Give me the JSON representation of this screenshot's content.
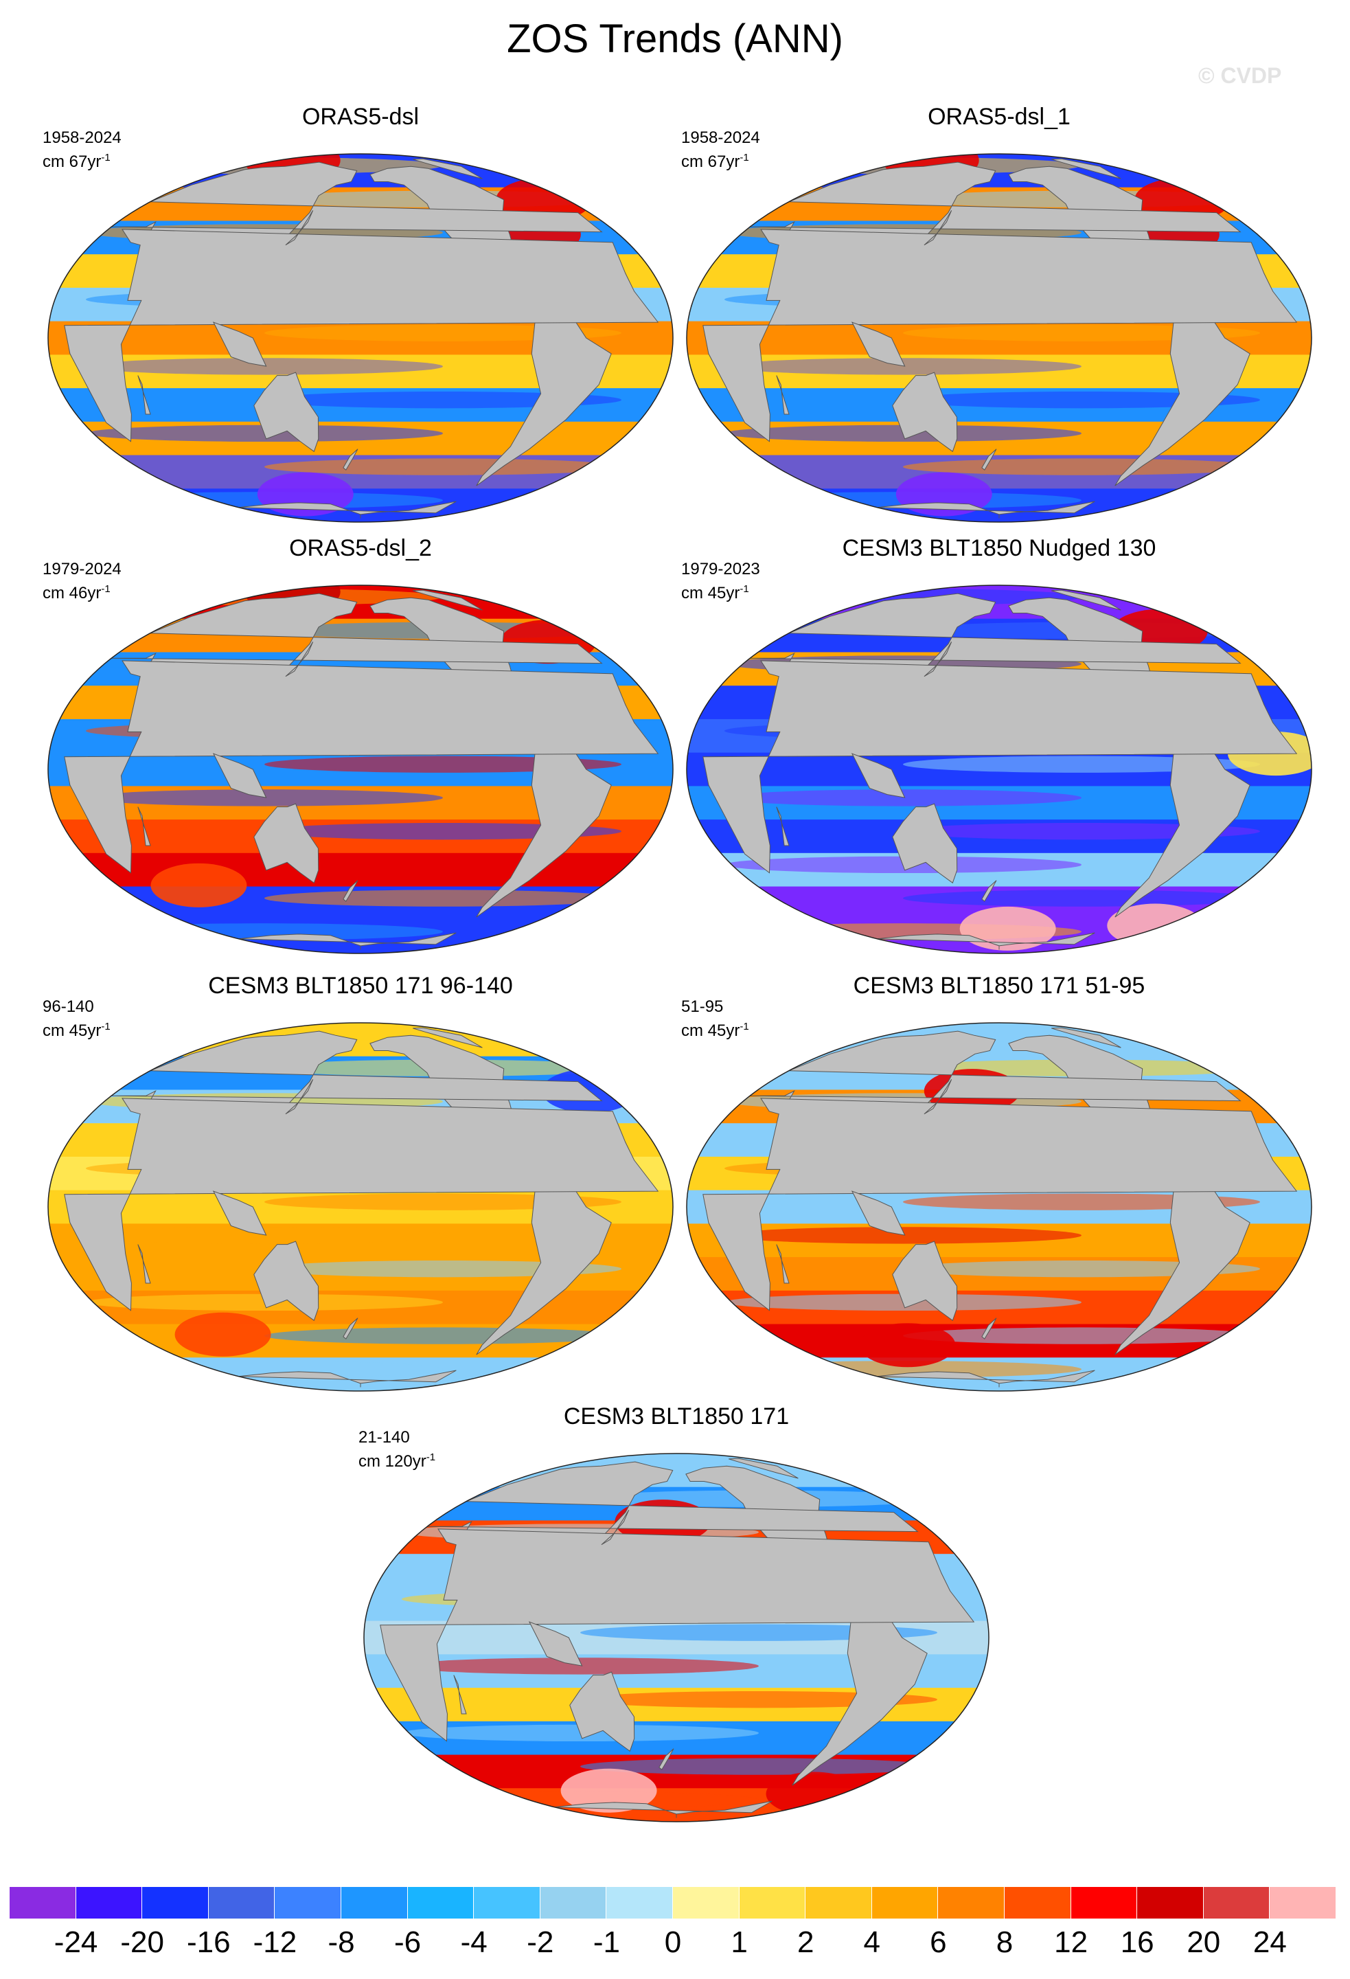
{
  "figure": {
    "title": "ZOS Trends (ANN)",
    "watermark": "© CVDP"
  },
  "panels": [
    {
      "title": "ORAS5-dsl",
      "period": "1958-2024",
      "units_prefix": "cm 67yr",
      "units_exp": "-1",
      "pattern": {
        "band_colors": [
          "#1e3cff",
          "#ff8c00",
          "#1e90ff",
          "#ffd21e",
          "#87cefa",
          "#ff8c00",
          "#ffd21e",
          "#1e90ff",
          "#ffa500",
          "#6a5acd",
          "#1e3cff"
        ],
        "hotspots": [
          {
            "color": "#e60000",
            "lon": -20,
            "lat": 50
          },
          {
            "color": "#e60000",
            "lon": -60,
            "lat": 35
          },
          {
            "color": "#e60000",
            "lon": 30,
            "lat": 80
          },
          {
            "color": "#7a28ff",
            "lon": 120,
            "lat": -60
          }
        ]
      }
    },
    {
      "title": "ORAS5-dsl_1",
      "period": "1958-2024",
      "units_prefix": "cm 67yr",
      "units_exp": "-1",
      "pattern": {
        "band_colors": [
          "#1e3cff",
          "#ff8c00",
          "#1e90ff",
          "#ffd21e",
          "#87cefa",
          "#ff8c00",
          "#ffd21e",
          "#1e90ff",
          "#ffa500",
          "#6a5acd",
          "#1e3cff"
        ],
        "hotspots": [
          {
            "color": "#e60000",
            "lon": -20,
            "lat": 50
          },
          {
            "color": "#e60000",
            "lon": -60,
            "lat": 35
          },
          {
            "color": "#e60000",
            "lon": 30,
            "lat": 80
          },
          {
            "color": "#7a28ff",
            "lon": 120,
            "lat": -60
          }
        ]
      }
    },
    {
      "title": "ORAS5-dsl_2",
      "period": "1979-2024",
      "units_prefix": "cm 46yr",
      "units_exp": "-1",
      "pattern": {
        "band_colors": [
          "#e60000",
          "#ff8c00",
          "#1e90ff",
          "#ffa500",
          "#1e90ff",
          "#1e90ff",
          "#ff8c00",
          "#ff4500",
          "#e60000",
          "#1e3cff",
          "#1e3cff"
        ],
        "hotspots": [
          {
            "color": "#e60000",
            "lon": -30,
            "lat": 45
          },
          {
            "color": "#c80000",
            "lon": 30,
            "lat": 80
          },
          {
            "color": "#ff4500",
            "lon": 60,
            "lat": -40
          }
        ]
      }
    },
    {
      "title": "CESM3 BLT1850 Nudged 130",
      "period": "1979-2023",
      "units_prefix": "cm 45yr",
      "units_exp": "-1",
      "pattern": {
        "band_colors": [
          "#7a28ff",
          "#1e3cff",
          "#ffa500",
          "#1e3cff",
          "#3264ff",
          "#1e3cff",
          "#1e90ff",
          "#1e3cff",
          "#87cefa",
          "#7a28ff",
          "#7a28ff"
        ],
        "hotspots": [
          {
            "color": "#e60000",
            "lon": -40,
            "lat": 50
          },
          {
            "color": "#ffb4b4",
            "lon": -10,
            "lat": -60
          },
          {
            "color": "#ffb4b4",
            "lon": -170,
            "lat": -62
          },
          {
            "color": "#ffe650",
            "lon": -20,
            "lat": 5
          }
        ]
      }
    },
    {
      "title": "CESM3 BLT1850 171 96-140",
      "period": "96-140",
      "units_prefix": "cm 45yr",
      "units_exp": "-1",
      "pattern": {
        "band_colors": [
          "#ffd21e",
          "#1e90ff",
          "#87cefa",
          "#ffd21e",
          "#ffe650",
          "#ffd21e",
          "#ffa500",
          "#ffa500",
          "#ff8c00",
          "#ffa500",
          "#87cefa"
        ],
        "hotspots": [
          {
            "color": "#ff4500",
            "lon": 70,
            "lat": -45
          },
          {
            "color": "#1e3cff",
            "lon": -10,
            "lat": 40
          }
        ]
      }
    },
    {
      "title": "CESM3 BLT1850 171 51-95",
      "period": "51-95",
      "units_prefix": "cm 45yr",
      "units_exp": "-1",
      "pattern": {
        "band_colors": [
          "#87cefa",
          "#87cefa",
          "#ff8c00",
          "#87cefa",
          "#ffd21e",
          "#87cefa",
          "#ffa500",
          "#ff8c00",
          "#ff4500",
          "#e60000",
          "#87cefa"
        ],
        "hotspots": [
          {
            "color": "#e60000",
            "lon": 160,
            "lat": 40
          },
          {
            "color": "#e60000",
            "lon": 100,
            "lat": -50
          }
        ]
      }
    },
    {
      "title": "CESM3 BLT1850 171",
      "period": "21-140",
      "units_prefix": "cm 120yr",
      "units_exp": "-1",
      "pattern": {
        "band_colors": [
          "#87cefa",
          "#1e90ff",
          "#ff4500",
          "#87cefa",
          "#87cefa",
          "#b4dcf0",
          "#87cefa",
          "#ffd21e",
          "#1e90ff",
          "#e60000",
          "#ff4500"
        ],
        "hotspots": [
          {
            "color": "#e60000",
            "lon": 170,
            "lat": 40
          },
          {
            "color": "#ffb4b4",
            "lon": 110,
            "lat": -58
          },
          {
            "color": "#e60000",
            "lon": -30,
            "lat": -60
          }
        ]
      }
    }
  ],
  "colorbar": {
    "colors": [
      "#8a2be2",
      "#3c14ff",
      "#1432ff",
      "#4164e6",
      "#3c82ff",
      "#1e96ff",
      "#19b4ff",
      "#46c3ff",
      "#96d2f0",
      "#b4e6fa",
      "#fff59b",
      "#ffe146",
      "#ffc81e",
      "#ffa500",
      "#ff8200",
      "#ff5000",
      "#ff0000",
      "#d20000",
      "#dc3c3c",
      "#ffb4b4"
    ],
    "labels": [
      "-24",
      "-20",
      "-16",
      "-12",
      "-8",
      "-6",
      "-4",
      "-2",
      "-1",
      "0",
      "1",
      "2",
      "4",
      "6",
      "8",
      "12",
      "16",
      "20",
      "24"
    ]
  },
  "land_color": "#c0c0c0"
}
